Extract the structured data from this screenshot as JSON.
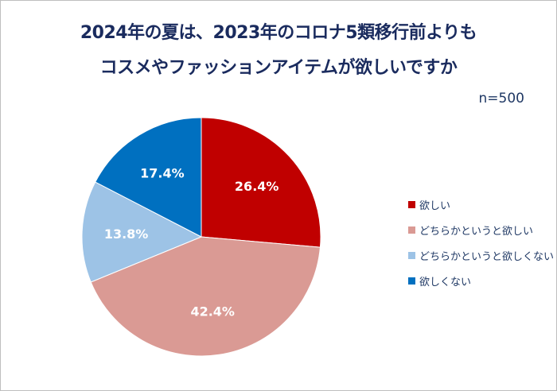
{
  "chart_data": {
    "type": "pie",
    "title_lines": [
      "2024年の夏は、2023年のコロナ5類移行前よりも",
      "コスメやファッションアイテムが欲しいですか"
    ],
    "note": "n=500",
    "start": "top",
    "direction": "clockwise",
    "legend_position": "right",
    "slices": [
      {
        "name": "欲しい",
        "value": 26.4,
        "label": "26.4%",
        "color": "#C00000"
      },
      {
        "name": "どちらかというと欲しい",
        "value": 42.4,
        "label": "42.4%",
        "color": "#DA9A94"
      },
      {
        "name": "どちらかというと欲しくない",
        "value": 13.8,
        "label": "13.8%",
        "color": "#9DC3E6"
      },
      {
        "name": "欲しくない",
        "value": 17.4,
        "label": "17.4%",
        "color": "#0070C0"
      }
    ]
  }
}
